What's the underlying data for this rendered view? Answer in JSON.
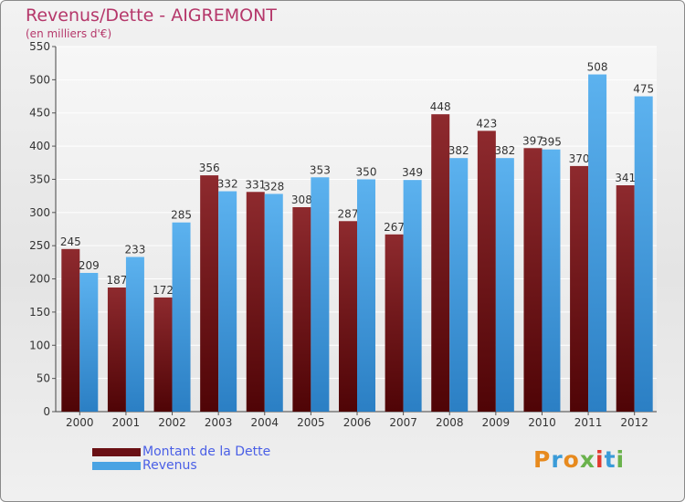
{
  "title": "Revenus/Dette - AIGREMONT",
  "subtitle": "(en milliers d'€)",
  "brand": {
    "letters": [
      "P",
      "r",
      "o",
      "x",
      "i",
      "t",
      "i"
    ],
    "colors": [
      "#e78a1e",
      "#3a9bd8",
      "#e78a1e",
      "#6ab24c",
      "#e2392f",
      "#3a9bd8",
      "#6ab24c"
    ]
  },
  "colors": {
    "dette": "#7a1b1f",
    "revenus": "#4aa3e3",
    "title": "#b5376a",
    "legend_text": "#4a5fe6"
  },
  "chart_data": {
    "type": "bar",
    "title": "Revenus/Dette - AIGREMONT",
    "ylabel": "(en milliers d'€)",
    "xlabel": "",
    "categories": [
      "2000",
      "2001",
      "2002",
      "2003",
      "2004",
      "2005",
      "2006",
      "2007",
      "2008",
      "2009",
      "2010",
      "2011",
      "2012"
    ],
    "series": [
      {
        "name": "Montant de la Dette",
        "values": [
          245,
          187,
          172,
          356,
          331,
          308,
          287,
          267,
          448,
          423,
          397,
          370,
          341
        ]
      },
      {
        "name": "Revenus",
        "values": [
          209,
          233,
          285,
          332,
          328,
          353,
          350,
          349,
          382,
          382,
          395,
          508,
          475
        ]
      }
    ],
    "ylim": [
      0,
      550
    ],
    "yticks": [
      0,
      50,
      100,
      150,
      200,
      250,
      300,
      350,
      400,
      450,
      500,
      550
    ],
    "grid": true,
    "legend": "bottom-left"
  }
}
